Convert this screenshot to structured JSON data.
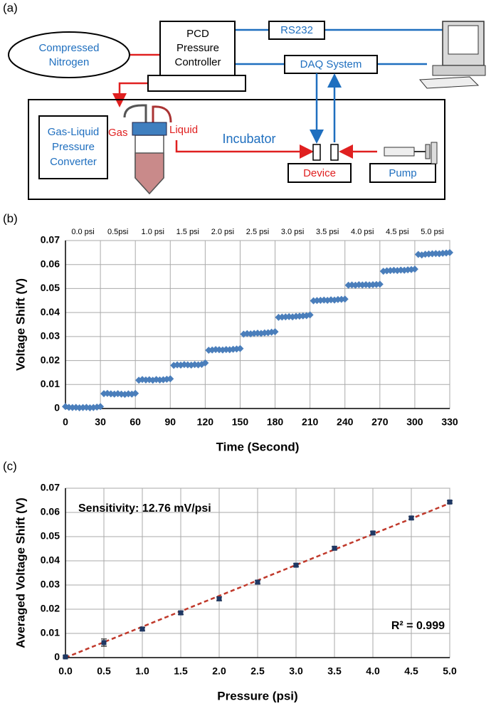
{
  "panel_labels": [
    "(a)",
    "(b)",
    "(c)"
  ],
  "diagram": {
    "nitrogen": [
      "Compressed",
      "Nitrogen"
    ],
    "controller": [
      "PCD",
      "Pressure",
      "Controller"
    ],
    "rs232": "RS232",
    "daq": "DAQ System",
    "converter": [
      "Gas-Liquid",
      "Pressure",
      "Converter"
    ],
    "gas": "Gas",
    "liquid": "Liquid",
    "incubator": "Incubator",
    "device": "Device",
    "pump": "Pump"
  },
  "chart_data": [
    {
      "type": "scatter",
      "marker": "diamond",
      "color": "#4a7ebb",
      "grid": true,
      "xlabel": "Time (Second)",
      "ylabel": "Voltage Shift (V)",
      "annotations": [
        "0.0 psi",
        "0.5psi",
        "1.0 psi",
        "1.5 psi",
        "2.0 psi",
        "2.5 psi",
        "3.0 psi",
        "3.5 psi",
        "4.0 psi",
        "4.5 psi",
        "5.0 psi"
      ],
      "xlim": [
        0,
        330
      ],
      "xticks": [
        0,
        30,
        60,
        90,
        120,
        150,
        180,
        210,
        240,
        270,
        300,
        330
      ],
      "ylim": [
        0,
        0.07
      ],
      "yticks": [
        0,
        0.01,
        0.02,
        0.03,
        0.04,
        0.05,
        0.06,
        0.07
      ],
      "x": [
        0,
        3,
        6,
        9,
        12,
        15,
        18,
        21,
        24,
        27,
        30,
        33,
        36,
        39,
        42,
        45,
        48,
        51,
        54,
        57,
        60,
        63,
        66,
        69,
        72,
        75,
        78,
        81,
        84,
        87,
        90,
        93,
        96,
        99,
        102,
        105,
        108,
        111,
        114,
        117,
        120,
        123,
        126,
        129,
        132,
        135,
        138,
        141,
        144,
        147,
        150,
        153,
        156,
        159,
        162,
        165,
        168,
        171,
        174,
        177,
        180,
        183,
        186,
        189,
        192,
        195,
        198,
        201,
        204,
        207,
        210,
        213,
        216,
        219,
        222,
        225,
        228,
        231,
        234,
        237,
        240,
        243,
        246,
        249,
        252,
        255,
        258,
        261,
        264,
        267,
        270,
        273,
        276,
        279,
        282,
        285,
        288,
        291,
        294,
        297,
        300,
        303,
        306,
        309,
        312,
        315,
        318,
        321,
        324,
        327,
        330
      ],
      "values": [
        0.0008,
        0.0005,
        0.0004,
        0.0005,
        0.0003,
        0.0004,
        0.0005,
        0.0003,
        0.0004,
        0.0006,
        0.0008,
        0.0062,
        0.0063,
        0.0061,
        0.006,
        0.0062,
        0.006,
        0.0059,
        0.0061,
        0.006,
        0.0063,
        0.0118,
        0.0121,
        0.0119,
        0.012,
        0.0118,
        0.0121,
        0.0119,
        0.012,
        0.0122,
        0.0124,
        0.018,
        0.0182,
        0.0181,
        0.0183,
        0.0182,
        0.0181,
        0.0183,
        0.0182,
        0.0184,
        0.019,
        0.0243,
        0.0244,
        0.0246,
        0.0245,
        0.0244,
        0.0246,
        0.0245,
        0.0247,
        0.0248,
        0.025,
        0.031,
        0.0312,
        0.0311,
        0.0313,
        0.0314,
        0.0313,
        0.0315,
        0.0316,
        0.0318,
        0.032,
        0.038,
        0.0381,
        0.0382,
        0.0383,
        0.0382,
        0.0384,
        0.0385,
        0.0386,
        0.0387,
        0.039,
        0.0449,
        0.045,
        0.0451,
        0.0452,
        0.0451,
        0.0453,
        0.0452,
        0.0454,
        0.0455,
        0.0456,
        0.0514,
        0.0515,
        0.0514,
        0.0516,
        0.0515,
        0.0516,
        0.0515,
        0.0516,
        0.0517,
        0.0518,
        0.0572,
        0.0574,
        0.0575,
        0.0576,
        0.0575,
        0.0577,
        0.0576,
        0.0578,
        0.0579,
        0.0581,
        0.0642,
        0.064,
        0.0643,
        0.0644,
        0.0645,
        0.0646,
        0.0645,
        0.0647,
        0.0648,
        0.065
      ]
    },
    {
      "type": "scatter",
      "marker": "square",
      "color": "#1f3864",
      "grid": true,
      "xlabel": "Pressure (psi)",
      "ylabel": "Averaged Voltage Shift (V)",
      "annotations": [
        "Sensitivity: 12.76 mV/psi",
        "R² = 0.999"
      ],
      "xlim": [
        0,
        5
      ],
      "xticks": [
        {
          "value": 0,
          "label": "0.0"
        },
        0.5,
        {
          "value": 1,
          "label": "1.0"
        },
        1.5,
        {
          "value": 2,
          "label": "2.0"
        },
        2.5,
        {
          "value": 3,
          "label": "3.0"
        },
        3.5,
        {
          "value": 4,
          "label": "4.0"
        },
        4.5,
        {
          "value": 5,
          "label": "5.0"
        }
      ],
      "ylim": [
        0,
        0.07
      ],
      "yticks": [
        0,
        0.01,
        0.02,
        0.03,
        0.04,
        0.05,
        0.06,
        0.07
      ],
      "x": [
        0,
        0.5,
        1,
        1.5,
        2,
        2.5,
        3,
        3.5,
        4,
        4.5,
        5
      ],
      "values": [
        0.0003,
        0.0062,
        0.0118,
        0.0185,
        0.0243,
        0.0312,
        0.0382,
        0.0452,
        0.0515,
        0.0577,
        0.0643
      ],
      "errors": [
        0.0004,
        0.0015,
        0.0007,
        0.0007,
        0.0008,
        0.0007,
        0.0006,
        0.0007,
        0.0006,
        0.0006,
        0.0005
      ],
      "trendline": {
        "slope": 0.01276,
        "intercept": 0,
        "color": "#c0392b",
        "style": "dashed"
      }
    }
  ]
}
